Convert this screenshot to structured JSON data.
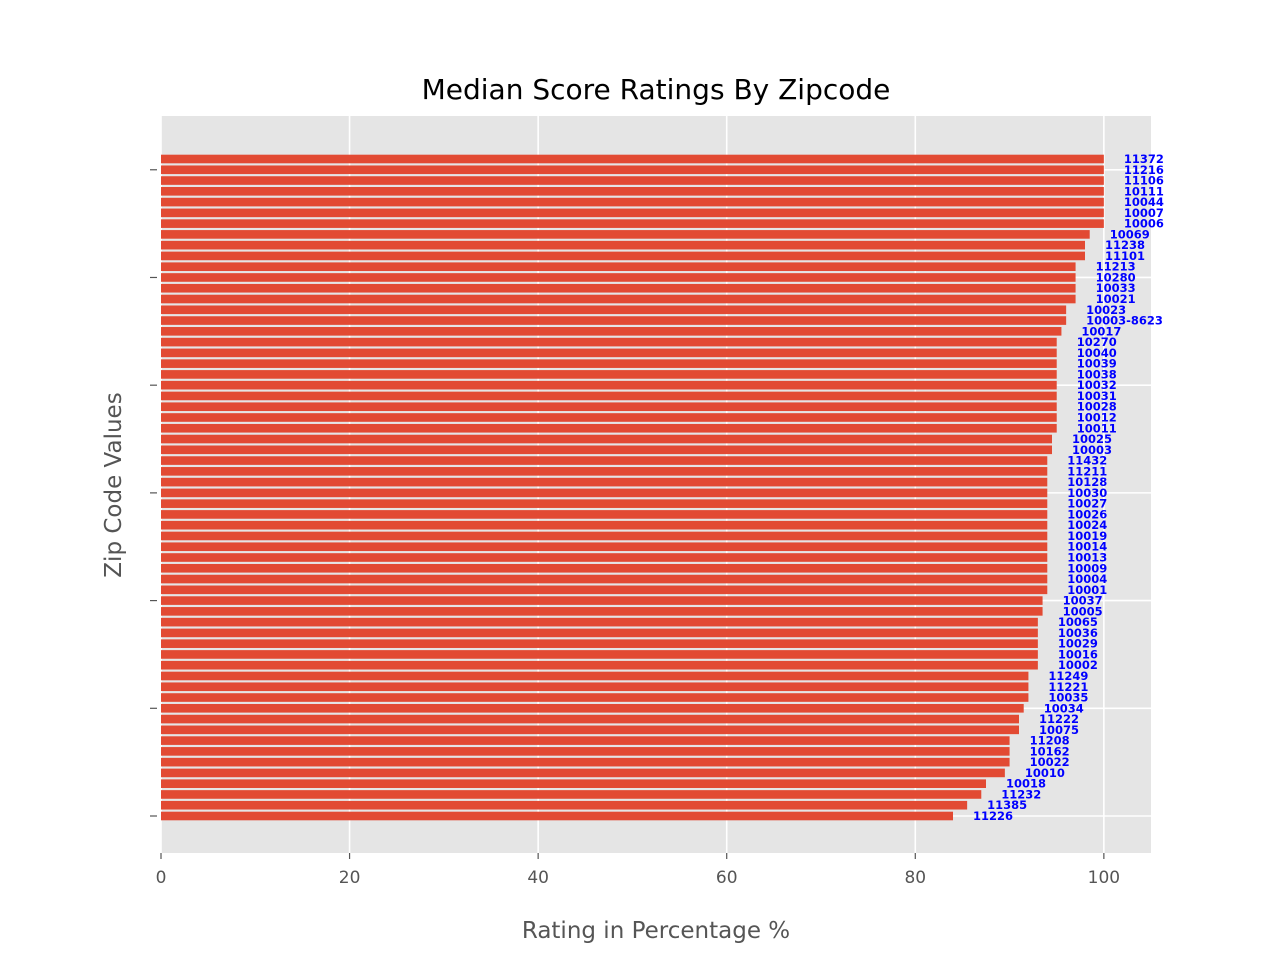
{
  "chart_data": {
    "type": "bar",
    "orientation": "horizontal",
    "title": "Median Score Ratings By Zipcode",
    "xlabel": "Rating in Percentage %",
    "ylabel": "Zip Code Values",
    "xlim": [
      0,
      105
    ],
    "xticks": [
      0,
      20,
      40,
      60,
      80,
      100
    ],
    "grid": true,
    "bar_color": "#E24A33",
    "label_color": "#0000FF",
    "background_color": "#E5E5E5",
    "categories": [
      "11372",
      "11216",
      "11106",
      "10111",
      "10044",
      "10007",
      "10006",
      "10069",
      "11238",
      "11101",
      "11213",
      "10280",
      "10033",
      "10021",
      "10023",
      "10003-8623",
      "10017",
      "10270",
      "10040",
      "10039",
      "10038",
      "10032",
      "10031",
      "10028",
      "10012",
      "10011",
      "10025",
      "10003",
      "11432",
      "11211",
      "10128",
      "10030",
      "10027",
      "10026",
      "10024",
      "10019",
      "10014",
      "10013",
      "10009",
      "10004",
      "10001",
      "10037",
      "10005",
      "10065",
      "10036",
      "10029",
      "10016",
      "10002",
      "11249",
      "11221",
      "10035",
      "10034",
      "11222",
      "10075",
      "11208",
      "10162",
      "10022",
      "10010",
      "10018",
      "11232",
      "11385",
      "11226"
    ],
    "values": [
      100,
      100,
      100,
      100,
      100,
      100,
      100,
      98.5,
      98,
      98,
      97,
      97,
      97,
      97,
      96,
      96,
      95.5,
      95,
      95,
      95,
      95,
      95,
      95,
      95,
      95,
      95,
      94.5,
      94.5,
      94,
      94,
      94,
      94,
      94,
      94,
      94,
      94,
      94,
      94,
      94,
      94,
      94,
      93.5,
      93.5,
      93,
      93,
      93,
      93,
      93,
      92,
      92,
      92,
      91.5,
      91,
      91,
      90,
      90,
      90,
      89.5,
      87.5,
      87,
      85.5,
      84
    ]
  }
}
